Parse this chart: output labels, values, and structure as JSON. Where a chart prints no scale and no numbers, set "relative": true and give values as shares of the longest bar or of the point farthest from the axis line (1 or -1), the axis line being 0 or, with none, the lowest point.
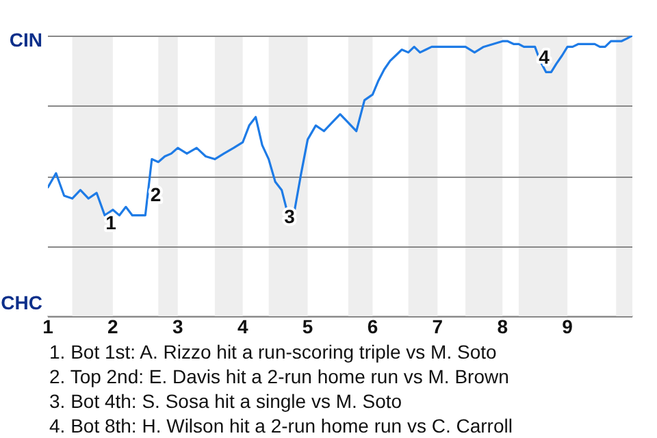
{
  "chart_data": {
    "type": "line",
    "relative": true,
    "x": [
      1,
      1.125,
      1.25,
      1.375,
      1.5,
      1.625,
      1.75,
      1.875,
      2,
      2.1,
      2.2,
      2.3,
      2.4,
      2.5,
      2.6,
      2.7,
      2.8,
      2.9,
      3,
      3.14,
      3.29,
      3.43,
      3.57,
      3.71,
      3.86,
      4,
      4.1,
      4.2,
      4.3,
      4.4,
      4.5,
      4.6,
      4.7,
      4.8,
      4.9,
      5,
      5.125,
      5.25,
      5.375,
      5.5,
      5.625,
      5.75,
      5.875,
      6,
      6.09,
      6.18,
      6.27,
      6.36,
      6.45,
      6.55,
      6.64,
      6.73,
      6.82,
      6.91,
      7,
      7.14,
      7.29,
      7.43,
      7.57,
      7.71,
      7.86,
      8,
      8.08,
      8.17,
      8.25,
      8.33,
      8.42,
      8.5,
      8.58,
      8.67,
      8.75,
      8.83,
      8.92,
      9,
      9.08,
      9.17,
      9.25,
      9.33,
      9.42,
      9.5,
      9.58,
      9.67,
      9.75,
      9.83,
      9.92,
      10
    ],
    "xlim": [
      1,
      10
    ],
    "xticks": [
      1,
      2,
      3,
      4,
      5,
      6,
      7,
      8,
      9
    ],
    "grid": "y",
    "legend": false,
    "marker": "none",
    "line_style": "solid",
    "series": [
      {
        "color": "#1e7be6",
        "values": [
          0.46,
          0.51,
          0.43,
          0.42,
          0.45,
          0.42,
          0.44,
          0.36,
          0.38,
          0.36,
          0.39,
          0.36,
          0.36,
          0.36,
          0.56,
          0.55,
          0.57,
          0.58,
          0.6,
          0.58,
          0.6,
          0.57,
          0.56,
          0.58,
          0.6,
          0.62,
          0.68,
          0.71,
          0.61,
          0.56,
          0.48,
          0.45,
          0.36,
          0.38,
          0.51,
          0.63,
          0.68,
          0.66,
          0.69,
          0.72,
          0.69,
          0.66,
          0.77,
          0.79,
          0.84,
          0.88,
          0.91,
          0.93,
          0.95,
          0.94,
          0.96,
          0.94,
          0.95,
          0.96,
          0.96,
          0.96,
          0.96,
          0.96,
          0.94,
          0.96,
          0.97,
          0.98,
          0.98,
          0.97,
          0.97,
          0.96,
          0.96,
          0.96,
          0.91,
          0.87,
          0.87,
          0.9,
          0.93,
          0.96,
          0.96,
          0.97,
          0.97,
          0.97,
          0.97,
          0.96,
          0.96,
          0.98,
          0.98,
          0.98,
          0.99,
          1
        ]
      }
    ],
    "bands": [
      {
        "axis": "x",
        "from": 1.375,
        "to": 2,
        "color": "#eeeeee"
      },
      {
        "axis": "x",
        "from": 2.7,
        "to": 3,
        "color": "#eeeeee"
      },
      {
        "axis": "x",
        "from": 3.57,
        "to": 4,
        "color": "#eeeeee"
      },
      {
        "axis": "x",
        "from": 4.4,
        "to": 5,
        "color": "#eeeeee"
      },
      {
        "axis": "x",
        "from": 5.625,
        "to": 6,
        "color": "#eeeeee"
      },
      {
        "axis": "x",
        "from": 6.55,
        "to": 7,
        "color": "#eeeeee"
      },
      {
        "axis": "x",
        "from": 7.43,
        "to": 8,
        "color": "#eeeeee"
      },
      {
        "axis": "x",
        "from": 8.25,
        "to": 9,
        "color": "#eeeeee"
      },
      {
        "axis": "x",
        "from": 9.75,
        "to": 10,
        "color": "#eeeeee"
      }
    ],
    "annotations": [
      "CIN",
      "CHC",
      {
        "text": "1",
        "x": 1.97,
        "y": 0.33
      },
      {
        "text": "2",
        "x": 2.66,
        "y": 0.43
      },
      {
        "text": "3",
        "x": 4.72,
        "y": 0.35
      },
      {
        "text": "4",
        "x": 8.64,
        "y": 0.92
      },
      "1. Bot 1st: A. Rizzo hit a run-scoring triple vs M. Soto",
      "2. Top 2nd: E. Davis hit a 2-run home run vs M. Brown",
      "3. Bot 4th: S. Sosa hit a single vs M. Soto",
      "4. Bot 8th: H. Wilson hit a 2-run home run vs C. Carroll"
    ]
  }
}
